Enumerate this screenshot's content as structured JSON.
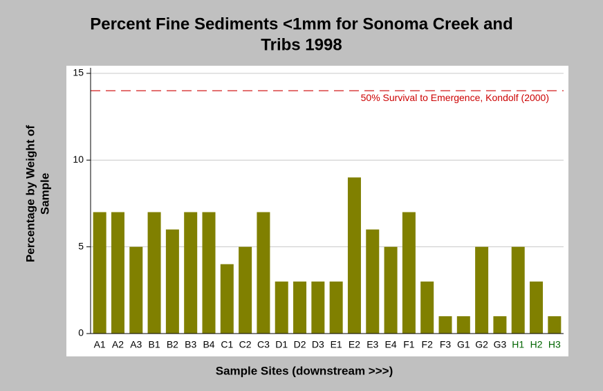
{
  "chart_data": {
    "type": "bar",
    "title": [
      "Percent Fine Sediments <1mm for Sonoma Creek and",
      "Tribs 1998"
    ],
    "xlabel": "Sample Sites (downstream >>>)",
    "ylabel": [
      "Percentage by Weight of",
      "Sample"
    ],
    "categories": [
      "A1",
      "A2",
      "A3",
      "B1",
      "B2",
      "B3",
      "B4",
      "C1",
      "C2",
      "C3",
      "D1",
      "D2",
      "D3",
      "E1",
      "E2",
      "E3",
      "E4",
      "F1",
      "F2",
      "F3",
      "G1",
      "G2",
      "G3",
      "H1",
      "H2",
      "H3"
    ],
    "values": [
      7,
      7,
      5,
      7,
      6,
      7,
      7,
      4,
      5,
      7,
      3,
      3,
      3,
      3,
      9,
      6,
      5,
      7,
      3,
      1,
      1,
      5,
      1,
      5,
      3,
      1
    ],
    "category_label_colors": [
      "#000000",
      "#000000",
      "#000000",
      "#000000",
      "#000000",
      "#000000",
      "#000000",
      "#000000",
      "#000000",
      "#000000",
      "#000000",
      "#000000",
      "#000000",
      "#000000",
      "#000000",
      "#000000",
      "#000000",
      "#000000",
      "#000000",
      "#000000",
      "#000000",
      "#000000",
      "#000000",
      "#006400",
      "#006400",
      "#006400"
    ],
    "color": "#808000",
    "ylim": [
      0,
      15
    ],
    "yticks": [
      0,
      5,
      10,
      15
    ],
    "grid": true,
    "reference_line": {
      "value": 14,
      "label": "50% Survival to Emergence, Kondolf (2000)",
      "color": "#cc0000"
    }
  }
}
